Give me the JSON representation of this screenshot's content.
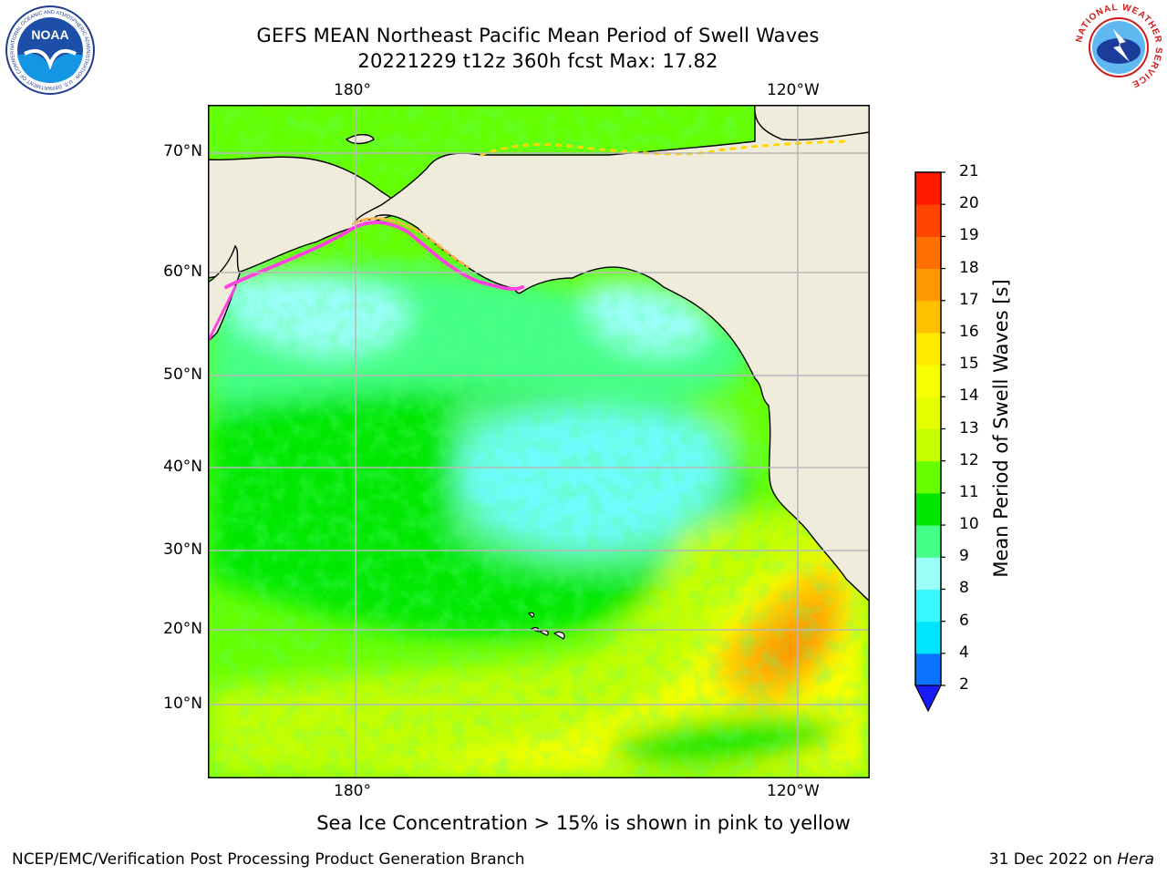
{
  "header": {
    "title_line1": "GEFS MEAN Northeast Pacific Mean Period of Swell Waves",
    "title_line2": "20221229 t12z 360h fcst   Max: 17.82"
  },
  "logos": {
    "left": "NOAA",
    "left_ring": "NATIONAL OCEANIC AND ATMOSPHERIC ADMINISTRATION · U.S. DEPARTMENT OF COMMERCE",
    "right_ring": "NATIONAL WEATHER SERVICE"
  },
  "map": {
    "lon_top": [
      "180°",
      "120°W"
    ],
    "lon_bottom": [
      "180°",
      "120°W"
    ],
    "lat_labels": [
      "70°N",
      "60°N",
      "50°N",
      "40°N",
      "30°N",
      "20°N",
      "10°N"
    ],
    "land_color": "#efecdc",
    "ocean_base_color": "#66ff00"
  },
  "colorbar": {
    "label": "Mean Period of Swell Waves [s]",
    "ticks": [
      "2",
      "4",
      "6",
      "8",
      "9",
      "10",
      "11",
      "12",
      "13",
      "14",
      "15",
      "16",
      "17",
      "18",
      "19",
      "20",
      "21"
    ],
    "colors": [
      "#0a74ff",
      "#00e5ff",
      "#38f8ff",
      "#9bfffa",
      "#44ff88",
      "#00e800",
      "#66ff00",
      "#c4ff00",
      "#e6ff00",
      "#f8ff00",
      "#ffea00",
      "#ffc000",
      "#ff9800",
      "#ff7000",
      "#ff4400",
      "#ff1a00"
    ],
    "under_color": "#1a1aff"
  },
  "footer": {
    "note": "Sea Ice Concentration > 15% is shown in pink to yellow",
    "credit": "NCEP/EMC/Verification Post Processing Product Generation Branch",
    "date": "31 Dec 2022 on",
    "machine": "Hera"
  }
}
